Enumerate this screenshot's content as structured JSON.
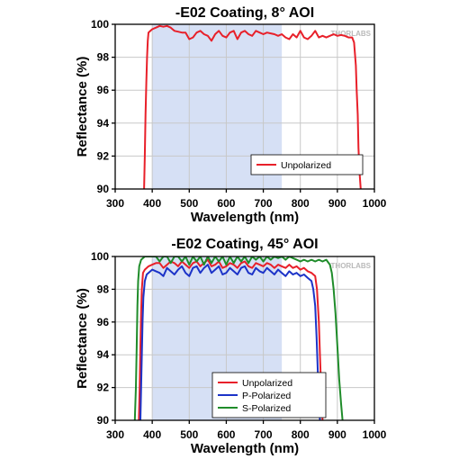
{
  "chart_data": [
    {
      "type": "line",
      "title": "-E02 Coating, 8° AOI",
      "xlabel": "Wavelength (nm)",
      "ylabel": "Reflectance (%)",
      "xlim": [
        300,
        1000
      ],
      "ylim": [
        90,
        100
      ],
      "xticks": [
        300,
        400,
        500,
        600,
        700,
        800,
        900,
        1000
      ],
      "yticks": [
        90,
        92,
        94,
        96,
        98,
        100
      ],
      "grid": true,
      "legend_position": "bottom-right",
      "shaded_band": {
        "x_start": 400,
        "x_end": 750,
        "color": "#d6e0f5"
      },
      "watermark": "THORLABS",
      "series": [
        {
          "name": "Unpolarized",
          "color": "#e8202a",
          "x": [
            378,
            380,
            382,
            384,
            386,
            388,
            390,
            395,
            400,
            410,
            420,
            430,
            440,
            450,
            460,
            470,
            480,
            490,
            500,
            510,
            520,
            530,
            540,
            550,
            560,
            570,
            580,
            590,
            600,
            610,
            620,
            630,
            640,
            650,
            660,
            670,
            680,
            690,
            700,
            710,
            720,
            730,
            740,
            750,
            760,
            770,
            780,
            790,
            800,
            810,
            820,
            830,
            840,
            850,
            860,
            870,
            880,
            890,
            900,
            910,
            920,
            930,
            940,
            945,
            950,
            952,
            955,
            957,
            960,
            963
          ],
          "y": [
            90,
            92,
            94.5,
            96.5,
            98,
            99,
            99.5,
            99.6,
            99.7,
            99.8,
            99.9,
            99.85,
            99.9,
            99.8,
            99.6,
            99.55,
            99.5,
            99.5,
            99.1,
            99.2,
            99.5,
            99.6,
            99.4,
            99.3,
            99.0,
            99.4,
            99.6,
            99.3,
            99.2,
            99.5,
            99.6,
            99.1,
            99.5,
            99.6,
            99.4,
            99.3,
            99.6,
            99.5,
            99.4,
            99.5,
            99.45,
            99.4,
            99.3,
            99.4,
            99.2,
            99.1,
            99.4,
            99.2,
            99.6,
            99.2,
            99.1,
            99.3,
            99.6,
            99.2,
            99.3,
            99.2,
            99.3,
            99.4,
            99.3,
            99.35,
            99.3,
            99.2,
            99.2,
            98.9,
            97.5,
            96,
            94.5,
            92.5,
            91,
            90
          ]
        }
      ]
    },
    {
      "type": "line",
      "title": "-E02 Coating, 45° AOI",
      "xlabel": "Wavelength (nm)",
      "ylabel": "Reflectance (%)",
      "xlim": [
        300,
        1000
      ],
      "ylim": [
        90,
        100
      ],
      "xticks": [
        300,
        400,
        500,
        600,
        700,
        800,
        900,
        1000
      ],
      "yticks": [
        90,
        92,
        94,
        96,
        98,
        100
      ],
      "grid": true,
      "legend_position": "bottom-right",
      "shaded_band": {
        "x_start": 400,
        "x_end": 750,
        "color": "#d6e0f5"
      },
      "watermark": "THORLABS",
      "series": [
        {
          "name": "Unpolarized",
          "color": "#e8202a",
          "x": [
            364,
            366,
            368,
            370,
            372,
            375,
            380,
            390,
            400,
            410,
            420,
            430,
            440,
            450,
            460,
            470,
            480,
            490,
            500,
            510,
            520,
            530,
            540,
            550,
            560,
            570,
            580,
            590,
            600,
            610,
            620,
            630,
            640,
            650,
            660,
            670,
            680,
            690,
            700,
            710,
            720,
            730,
            740,
            750,
            760,
            770,
            780,
            790,
            800,
            810,
            820,
            830,
            840,
            845,
            850,
            853,
            856,
            860
          ],
          "y": [
            90,
            92,
            94.5,
            96.5,
            98,
            99,
            99.2,
            99.4,
            99.5,
            99.6,
            99.6,
            99.3,
            99.5,
            99.7,
            99.6,
            99.4,
            99.7,
            99.5,
            99.3,
            99.6,
            99.7,
            99.4,
            99.6,
            99.8,
            99.4,
            99.5,
            99.7,
            99.3,
            99.4,
            99.6,
            99.5,
            99.3,
            99.6,
            99.7,
            99.4,
            99.3,
            99.6,
            99.5,
            99.4,
            99.6,
            99.5,
            99.3,
            99.5,
            99.4,
            99.3,
            99.5,
            99.3,
            99.4,
            99.2,
            99.3,
            99.1,
            99.0,
            98.8,
            98,
            96,
            94,
            92,
            90
          ]
        },
        {
          "name": "P-Polarized",
          "color": "#1c33c8",
          "x": [
            368,
            370,
            372,
            374,
            376,
            380,
            385,
            390,
            400,
            410,
            420,
            430,
            440,
            450,
            460,
            470,
            480,
            490,
            500,
            510,
            520,
            530,
            540,
            550,
            560,
            570,
            580,
            590,
            600,
            610,
            620,
            630,
            640,
            650,
            660,
            670,
            680,
            690,
            700,
            710,
            720,
            730,
            740,
            750,
            760,
            770,
            780,
            790,
            800,
            810,
            820,
            830,
            835,
            840,
            844,
            847,
            850,
            853
          ],
          "y": [
            90,
            92,
            94,
            96,
            97.5,
            98.5,
            98.9,
            99.0,
            99.2,
            99.1,
            99.0,
            98.8,
            99.3,
            99.1,
            98.9,
            99.2,
            99.4,
            99.0,
            98.8,
            99.3,
            99.4,
            99.0,
            99.3,
            99.5,
            99.0,
            99.2,
            99.4,
            98.9,
            99.0,
            99.3,
            99.1,
            98.9,
            99.3,
            99.4,
            99.0,
            98.9,
            99.3,
            99.1,
            99.0,
            99.3,
            99.1,
            98.9,
            99.2,
            99.0,
            98.8,
            99.1,
            98.9,
            99.0,
            98.8,
            98.9,
            98.7,
            98.5,
            98,
            97,
            95,
            93,
            91.5,
            90
          ]
        },
        {
          "name": "S-Polarized",
          "color": "#1f8c2a",
          "x": [
            353,
            356,
            358,
            360,
            362,
            365,
            370,
            380,
            390,
            400,
            410,
            420,
            430,
            440,
            450,
            460,
            470,
            480,
            490,
            500,
            510,
            520,
            530,
            540,
            550,
            560,
            570,
            580,
            590,
            600,
            610,
            620,
            630,
            640,
            650,
            660,
            670,
            680,
            690,
            700,
            710,
            720,
            730,
            740,
            750,
            760,
            770,
            780,
            790,
            800,
            810,
            820,
            830,
            840,
            850,
            860,
            870,
            880,
            885,
            890,
            895,
            900,
            905,
            910,
            914
          ],
          "y": [
            90,
            92,
            94.5,
            97,
            98.5,
            99.4,
            99.8,
            100,
            100,
            100,
            100,
            99.7,
            100,
            100,
            99.6,
            100,
            100,
            99.7,
            100,
            99.5,
            100,
            99.7,
            100,
            99.5,
            100,
            99.6,
            100,
            99.7,
            100,
            99.5,
            100,
            99.6,
            100,
            99.7,
            100,
            99.6,
            100,
            99.8,
            100,
            99.7,
            100,
            99.8,
            100,
            99.9,
            100,
            99.8,
            100,
            99.9,
            99.8,
            99.7,
            99.8,
            99.7,
            99.8,
            99.7,
            99.8,
            99.7,
            99.8,
            99.5,
            99,
            98,
            96.5,
            94.5,
            92.5,
            91,
            90
          ]
        }
      ]
    }
  ]
}
